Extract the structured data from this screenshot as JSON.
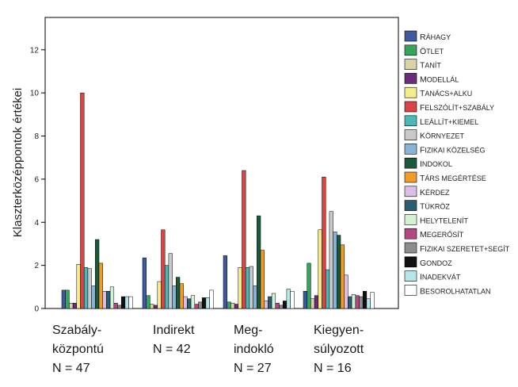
{
  "chart_data": {
    "type": "bar",
    "ylabel": "Klaszterközéppontok értékei",
    "xlabel": "",
    "ylim": [
      0,
      13.5
    ],
    "yticks": [
      0,
      2,
      4,
      6,
      8,
      10,
      12
    ],
    "grid": false,
    "legend_position": "right",
    "categories": [
      [
        "Szabály-",
        "központú",
        "N = 47"
      ],
      [
        "Indirekt",
        "N = 42"
      ],
      [
        "Meg-",
        "indokló",
        "N = 27"
      ],
      [
        "Kiegyen-",
        "súlyozott",
        "N = 16"
      ]
    ],
    "series": [
      {
        "name": "Ráhagy",
        "color": "#3d5a9e",
        "values": [
          0.85,
          2.35,
          2.45,
          0.8
        ]
      },
      {
        "name": "Ötlet",
        "color": "#36a45a",
        "values": [
          0.85,
          0.6,
          0.3,
          2.1
        ]
      },
      {
        "name": "Tanít",
        "color": "#d7d4a7",
        "values": [
          0.25,
          0.2,
          0.25,
          0.45
        ]
      },
      {
        "name": "Modellál",
        "color": "#6b2c7b",
        "values": [
          0.25,
          0.15,
          0.2,
          0.6
        ]
      },
      {
        "name": "Tanács+alku",
        "color": "#f5ee88",
        "values": [
          2.05,
          1.25,
          1.9,
          3.65
        ]
      },
      {
        "name": "Felszólít+szabály",
        "color": "#d94444",
        "values": [
          10.0,
          3.65,
          6.4,
          6.1
        ]
      },
      {
        "name": "Leállít+kiemel",
        "color": "#4db8b8",
        "values": [
          1.9,
          2.0,
          1.9,
          1.8
        ]
      },
      {
        "name": "Környezet",
        "color": "#c9c9c9",
        "values": [
          1.85,
          2.55,
          1.95,
          4.5
        ]
      },
      {
        "name": "Fizikai közelség",
        "color": "#88b2d6",
        "values": [
          1.05,
          1.05,
          1.05,
          3.55
        ]
      },
      {
        "name": "Indokol",
        "color": "#1a5a3a",
        "values": [
          3.2,
          1.45,
          4.3,
          3.4
        ]
      },
      {
        "name": "Társ megértése",
        "color": "#f29b26",
        "values": [
          2.1,
          1.15,
          2.7,
          2.95
        ]
      },
      {
        "name": "Kérdez",
        "color": "#dcbde6",
        "values": [
          0.8,
          0.55,
          0.35,
          1.55
        ]
      },
      {
        "name": "Tükröz",
        "color": "#2a5f73",
        "values": [
          0.8,
          0.45,
          0.55,
          0.55
        ]
      },
      {
        "name": "Helytelenít",
        "color": "#d3f2d3",
        "values": [
          1.0,
          0.6,
          0.7,
          0.65
        ]
      },
      {
        "name": "Megerősít",
        "color": "#b44780",
        "values": [
          0.25,
          0.2,
          0.25,
          0.6
        ]
      },
      {
        "name": "Fizikai szeretet+segít",
        "color": "#8c8c8c",
        "values": [
          0.15,
          0.3,
          0.15,
          0.55
        ]
      },
      {
        "name": "Gondoz",
        "color": "#111111",
        "values": [
          0.55,
          0.5,
          0.35,
          0.8
        ]
      },
      {
        "name": "Inadekvát",
        "color": "#b4e6ec",
        "values": [
          0.55,
          0.5,
          0.9,
          0.45
        ]
      },
      {
        "name": "Besorolhatatlan",
        "color": "#ffffff",
        "values": [
          0.55,
          0.85,
          0.8,
          0.75
        ]
      }
    ]
  }
}
